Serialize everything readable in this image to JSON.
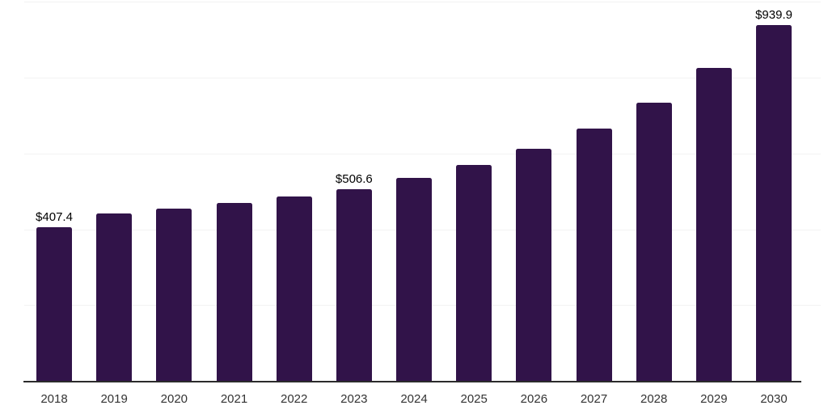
{
  "chart_data": {
    "type": "bar",
    "title": "",
    "xlabel": "",
    "ylabel": "",
    "categories": [
      "2018",
      "2019",
      "2020",
      "2021",
      "2022",
      "2023",
      "2024",
      "2025",
      "2026",
      "2027",
      "2028",
      "2029",
      "2030"
    ],
    "values": [
      407.4,
      442,
      456,
      470,
      487,
      506.6,
      537,
      570,
      614,
      667,
      736,
      826,
      939.9
    ],
    "data_labels": [
      "$407.4",
      "",
      "",
      "",
      "",
      "$506.6",
      "",
      "",
      "",
      "",
      "",
      "",
      "$939.9"
    ],
    "ylim": [
      0,
      1000
    ],
    "gridline_values": [
      200,
      400,
      600,
      800,
      1000
    ],
    "y_tick_labels_visible": "none",
    "legend": "none",
    "grid": "horizontal",
    "colors": {
      "bar": "#311349",
      "background": "#ffffff",
      "axis_line": "#2b2b2b",
      "gridline": "#f2f2f2",
      "tick_label": "#333333",
      "data_label": "#000000"
    }
  }
}
